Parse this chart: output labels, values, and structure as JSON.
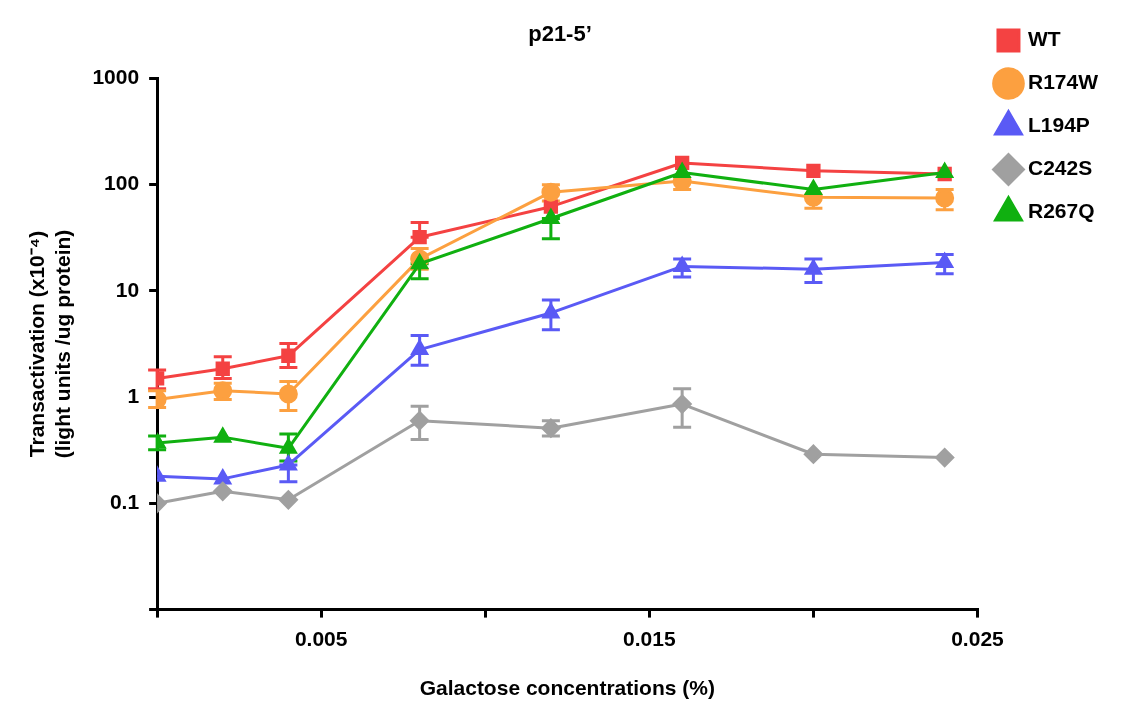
{
  "chart_data": {
    "type": "line",
    "title": "p21-5’",
    "xlabel": "Galactose concentrations (%)",
    "ylabel": "Transactivation (x10⁻⁴)\n(light units /ug protein)",
    "x": [
      0,
      0.002,
      0.004,
      0.008,
      0.012,
      0.016,
      0.02,
      0.024
    ],
    "xlim": [
      0,
      0.025
    ],
    "xticks": [
      {
        "value": 0,
        "label": null
      },
      0.005,
      {
        "value": 0.01,
        "label": null
      },
      0.015,
      {
        "value": 0.02,
        "label": null
      },
      0.025
    ],
    "ylim": [
      0.01,
      1000
    ],
    "yticks": [
      {
        "value": 0.01,
        "label": null
      },
      0.1,
      1,
      10,
      100,
      1000
    ],
    "log": "y",
    "grid": false,
    "legend": "right",
    "line_style": "solid",
    "series": [
      {
        "name": "WT",
        "color": "#f44242",
        "marker": "square",
        "values": [
          1.5,
          1.85,
          2.45,
          32,
          62,
          160,
          135,
          126
        ],
        "errors": [
          [
            1.2,
            1.8
          ],
          [
            1.5,
            2.4
          ],
          [
            1.9,
            3.2
          ],
          [
            32,
            44
          ],
          null,
          null,
          null,
          null
        ]
      },
      {
        "name": "R174W",
        "color": "#fca040",
        "marker": "circle",
        "values": [
          0.95,
          1.15,
          1.07,
          20,
          85,
          108,
          76,
          75
        ],
        "errors": [
          [
            0.8,
            1.15
          ],
          [
            0.95,
            1.35
          ],
          [
            0.75,
            1.4
          ],
          [
            16,
            25
          ],
          [
            70,
            100
          ],
          [
            90,
            108
          ],
          [
            60,
            76
          ],
          [
            58,
            90
          ]
        ]
      },
      {
        "name": "L194P",
        "color": "#5a5af5",
        "marker": "triangle",
        "values": [
          0.18,
          0.17,
          0.23,
          2.8,
          6.2,
          17,
          16,
          18.5
        ],
        "errors": [
          null,
          null,
          [
            0.16,
            0.23
          ],
          [
            2.0,
            3.8
          ],
          [
            4.3,
            8.2
          ],
          [
            13.5,
            20
          ],
          [
            12,
            20
          ],
          [
            14.5,
            22
          ]
        ]
      },
      {
        "name": "C242S",
        "color": "#a0a0a0",
        "marker": "diamond",
        "values": [
          0.1,
          0.13,
          0.108,
          0.6,
          0.51,
          0.86,
          0.29,
          0.27
        ],
        "errors": [
          null,
          null,
          null,
          [
            0.4,
            0.82
          ],
          [
            0.43,
            0.6
          ],
          [
            0.52,
            1.2
          ],
          null,
          null
        ]
      },
      {
        "name": "R267Q",
        "color": "#10b010",
        "marker": "triangle",
        "values": [
          0.37,
          0.42,
          0.33,
          18,
          48,
          130,
          90,
          130
        ],
        "errors": [
          [
            0.32,
            0.43
          ],
          null,
          [
            0.25,
            0.45
          ],
          [
            13,
            18
          ],
          [
            31,
            48
          ],
          null,
          null,
          null
        ]
      }
    ]
  }
}
